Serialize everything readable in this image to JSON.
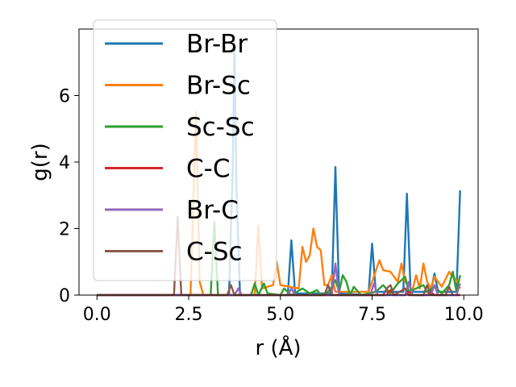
{
  "chart_data": {
    "type": "line",
    "title": "",
    "xlabel": "r (Å)",
    "ylabel": "g(r)",
    "xlim": [
      -0.49,
      10.39
    ],
    "ylim": [
      0,
      8.0
    ],
    "xticks": [
      0.0,
      2.5,
      5.0,
      7.5,
      10.0
    ],
    "xtick_labels": [
      "0.0",
      "2.5",
      "5.0",
      "7.5",
      "10.0"
    ],
    "yticks": [
      0,
      2,
      4,
      6
    ],
    "ytick_labels": [
      "0",
      "2",
      "4",
      "6"
    ],
    "grid": false,
    "legend_position": "upper-left",
    "series": [
      {
        "name": "Br-Br",
        "color": "#1f77b4",
        "points": [
          [
            0,
            0
          ],
          [
            3.6,
            0
          ],
          [
            3.7,
            3.8
          ],
          [
            3.75,
            7.6
          ],
          [
            3.8,
            3.2
          ],
          [
            3.9,
            0
          ],
          [
            5.2,
            0
          ],
          [
            5.3,
            1.65
          ],
          [
            5.4,
            0.05
          ],
          [
            6.4,
            0.05
          ],
          [
            6.5,
            3.85
          ],
          [
            6.6,
            0.05
          ],
          [
            7.4,
            0
          ],
          [
            7.5,
            1.55
          ],
          [
            7.6,
            0.1
          ],
          [
            8.35,
            0.1
          ],
          [
            8.45,
            3.05
          ],
          [
            8.55,
            0.1
          ],
          [
            9.1,
            0.1
          ],
          [
            9.2,
            0.65
          ],
          [
            9.3,
            0.1
          ],
          [
            9.8,
            0.1
          ],
          [
            9.9,
            3.15
          ]
        ]
      },
      {
        "name": "Br-Sc",
        "color": "#ff7f0e",
        "points": [
          [
            0,
            0
          ],
          [
            2.55,
            0
          ],
          [
            2.7,
            5.5
          ],
          [
            2.8,
            0.4
          ],
          [
            2.9,
            0
          ],
          [
            4.3,
            0
          ],
          [
            4.4,
            2.1
          ],
          [
            4.5,
            0.2
          ],
          [
            4.8,
            0.3
          ],
          [
            4.9,
            1.0
          ],
          [
            5.0,
            0.3
          ],
          [
            5.5,
            0.2
          ],
          [
            5.6,
            1.45
          ],
          [
            5.7,
            1.0
          ],
          [
            5.8,
            1.2
          ],
          [
            5.9,
            2.0
          ],
          [
            6.0,
            1.45
          ],
          [
            6.1,
            1.35
          ],
          [
            6.2,
            0.3
          ],
          [
            6.3,
            0.3
          ],
          [
            6.4,
            0.6
          ],
          [
            6.5,
            0.1
          ],
          [
            7.4,
            0.1
          ],
          [
            7.5,
            0.4
          ],
          [
            7.7,
            1.05
          ],
          [
            7.8,
            0.75
          ],
          [
            8.0,
            0.7
          ],
          [
            8.1,
            0.55
          ],
          [
            8.2,
            0.4
          ],
          [
            8.3,
            0.95
          ],
          [
            8.4,
            0.4
          ],
          [
            8.6,
            0.15
          ],
          [
            8.7,
            0.6
          ],
          [
            8.8,
            0.2
          ],
          [
            8.9,
            0.95
          ],
          [
            9.0,
            0.4
          ],
          [
            9.1,
            0.2
          ],
          [
            9.2,
            0.55
          ],
          [
            9.4,
            0.25
          ],
          [
            9.6,
            0.7
          ],
          [
            9.7,
            0.55
          ],
          [
            9.8,
            0.45
          ],
          [
            9.9,
            0.2
          ]
        ]
      },
      {
        "name": "Sc-Sc",
        "color": "#2ca02c",
        "points": [
          [
            0,
            0
          ],
          [
            3.1,
            0
          ],
          [
            3.2,
            2.2
          ],
          [
            3.3,
            0
          ],
          [
            4.2,
            0
          ],
          [
            4.3,
            0.35
          ],
          [
            4.4,
            0
          ],
          [
            4.55,
            0.35
          ],
          [
            4.65,
            0.05
          ],
          [
            5.0,
            0
          ],
          [
            5.1,
            0.2
          ],
          [
            5.3,
            0
          ],
          [
            5.6,
            0.2
          ],
          [
            5.8,
            0.05
          ],
          [
            6.0,
            0.15
          ],
          [
            6.1,
            0
          ],
          [
            6.3,
            0.1
          ],
          [
            6.4,
            0.25
          ],
          [
            6.5,
            0.45
          ],
          [
            6.6,
            0.1
          ],
          [
            6.7,
            0.6
          ],
          [
            6.8,
            0.4
          ],
          [
            6.9,
            0
          ],
          [
            7.0,
            0.25
          ],
          [
            7.2,
            0
          ],
          [
            7.6,
            0.1
          ],
          [
            7.8,
            0.3
          ],
          [
            8.0,
            0.05
          ],
          [
            8.2,
            0.35
          ],
          [
            8.4,
            0.55
          ],
          [
            8.5,
            0.1
          ],
          [
            8.7,
            0.2
          ],
          [
            8.9,
            0.3
          ],
          [
            9.0,
            0.1
          ],
          [
            9.2,
            0.25
          ],
          [
            9.4,
            0.05
          ],
          [
            9.6,
            0.3
          ],
          [
            9.7,
            0.7
          ],
          [
            9.8,
            0.1
          ],
          [
            9.9,
            0.6
          ]
        ]
      },
      {
        "name": "C-C",
        "color": "#d62728",
        "points": [
          [
            0,
            0
          ],
          [
            7.9,
            0
          ],
          [
            8.0,
            0.15
          ],
          [
            8.1,
            0
          ],
          [
            8.4,
            0
          ],
          [
            8.5,
            0.1
          ],
          [
            8.6,
            0
          ],
          [
            9.0,
            0
          ],
          [
            9.1,
            0.1
          ],
          [
            9.2,
            0
          ],
          [
            9.9,
            0
          ]
        ]
      },
      {
        "name": "Br-C",
        "color": "#9467bd",
        "points": [
          [
            0,
            0
          ],
          [
            3.75,
            0
          ],
          [
            3.85,
            0.2
          ],
          [
            3.95,
            0
          ],
          [
            5.2,
            0
          ],
          [
            5.3,
            0.2
          ],
          [
            5.4,
            0
          ],
          [
            6.4,
            0
          ],
          [
            6.5,
            0.95
          ],
          [
            6.6,
            0
          ],
          [
            7.45,
            0
          ],
          [
            7.55,
            0.35
          ],
          [
            7.65,
            0
          ],
          [
            8.4,
            0
          ],
          [
            8.5,
            0.4
          ],
          [
            8.6,
            0
          ],
          [
            9.1,
            0
          ],
          [
            9.2,
            0.3
          ],
          [
            9.3,
            0
          ],
          [
            9.8,
            0
          ],
          [
            9.9,
            0.35
          ]
        ]
      },
      {
        "name": "C-Sc",
        "color": "#8c564b",
        "points": [
          [
            0,
            0
          ],
          [
            2.1,
            0
          ],
          [
            2.2,
            2.35
          ],
          [
            2.3,
            0
          ],
          [
            3.55,
            0
          ],
          [
            3.65,
            0.3
          ],
          [
            3.75,
            0
          ],
          [
            6.2,
            0
          ],
          [
            6.3,
            0.3
          ],
          [
            6.4,
            0
          ],
          [
            7.8,
            0
          ],
          [
            7.9,
            0.2
          ],
          [
            8.0,
            0.3
          ],
          [
            8.1,
            0
          ],
          [
            8.4,
            0.2
          ],
          [
            8.5,
            0
          ],
          [
            8.9,
            0
          ],
          [
            9.0,
            0.3
          ],
          [
            9.1,
            0
          ],
          [
            9.5,
            0
          ],
          [
            9.6,
            0.25
          ],
          [
            9.7,
            0
          ]
        ]
      }
    ]
  }
}
